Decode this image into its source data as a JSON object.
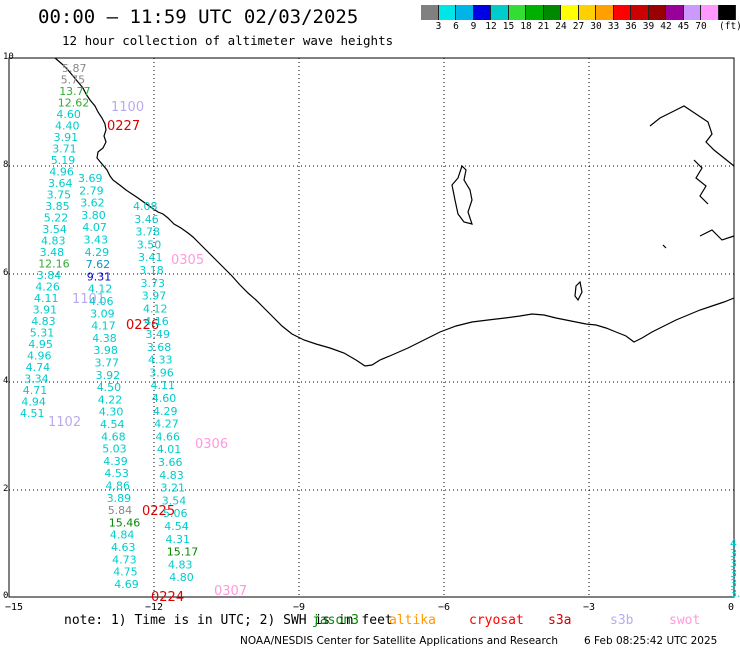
{
  "title": "00:00 – 11:59 UTC 02/03/2025",
  "subtitle": "12 hour collection of altimeter wave heights",
  "colorbar": {
    "colors": [
      "#808080",
      "#00e5e5",
      "#00b5e5",
      "#0000e5",
      "#00cccc",
      "#33dd33",
      "#00b000",
      "#008800",
      "#ffff00",
      "#ffd000",
      "#ffa000",
      "#ff0000",
      "#cc0000",
      "#990000",
      "#990099",
      "#cc99ff",
      "#ff99ff",
      "#000000"
    ],
    "labels": [
      "3",
      "6",
      "9",
      "12",
      "15",
      "18",
      "21",
      "24",
      "27",
      "30",
      "33",
      "36",
      "39",
      "42",
      "45",
      "70"
    ],
    "unit": "(ft)"
  },
  "axes": {
    "yticks": [
      "10",
      "8",
      "6",
      "4",
      "2",
      "0"
    ],
    "xticks": [
      "−15",
      "−12",
      "−9",
      "−6",
      "−3",
      "0"
    ]
  },
  "footer": {
    "note": "note: 1) Time is in UTC; 2) SWH is in feet",
    "satellites": [
      {
        "name": "jason3",
        "color": "#008800"
      },
      {
        "name": "altika",
        "color": "#ff9900"
      },
      {
        "name": "cryosat",
        "color": "#ff0000"
      },
      {
        "name": "s3a",
        "color": "#cc0000"
      },
      {
        "name": "s3b",
        "color": "#bbaaee"
      },
      {
        "name": "swot",
        "color": "#ff99dd"
      }
    ],
    "credit": "NOAA/NESDIS Center for Satellite Applications and Research",
    "timestamp": "6 Feb 08:25:42 UTC 2025"
  },
  "track_labels": [
    {
      "text": "1100",
      "color": "#bbaaee"
    },
    {
      "text": "0227",
      "color": "#dd0000"
    },
    {
      "text": "0305",
      "color": "#ff99dd"
    },
    {
      "text": "1101",
      "color": "#bbaaee"
    },
    {
      "text": "0226",
      "color": "#dd0000"
    },
    {
      "text": "1102",
      "color": "#bbaaee"
    },
    {
      "text": "0306",
      "color": "#ff99dd"
    },
    {
      "text": "0225",
      "color": "#dd0000"
    },
    {
      "text": "0224",
      "color": "#dd0000"
    },
    {
      "text": "0307",
      "color": "#ff99dd"
    }
  ],
  "obs_track1": [
    "5.87",
    "5.75",
    "13.77",
    "12.62",
    "4.60",
    "4.40",
    "3.91",
    "3.71",
    "5.19",
    "4.96",
    "3.64",
    "3.75",
    "3.85",
    "5.22",
    "3.54",
    "4.83",
    "3.48",
    "12.16",
    "3.84",
    "4.26",
    "4.11",
    "3.91",
    "4.83",
    "5.31",
    "4.95",
    "4.96",
    "4.74",
    "3.34",
    "4.71",
    "4.94",
    "4.51"
  ],
  "obs_track2": [
    "3.69",
    "2.79",
    "3.62",
    "3.80",
    "4.07",
    "3.43",
    "4.29",
    "7.62",
    "9.31",
    "4.12",
    "4.06",
    "3.09",
    "4.17",
    "4.38",
    "3.98",
    "3.77",
    "3.92",
    "4.50",
    "4.22",
    "4.30",
    "4.54",
    "4.68",
    "5.03",
    "4.39",
    "4.53",
    "4.86",
    "3.89",
    "5.84",
    "15.46",
    "4.84",
    "4.63",
    "4.73",
    "4.75",
    "4.69"
  ],
  "obs_track3": [
    "4.08",
    "3.46",
    "3.78",
    "3.50",
    "3.41",
    "3.18",
    "3.73",
    "3.97",
    "4.12",
    "4.16",
    "3.49",
    "3.68",
    "4.33",
    "3.96",
    "4.11",
    "4.60",
    "4.29",
    "4.27",
    "4.66",
    "4.01",
    "3.66",
    "4.83",
    "3.21",
    "3.54",
    "5.06",
    "4.54",
    "4.31",
    "15.17",
    "4.83",
    "4.80"
  ],
  "obs_edge": [
    "4",
    "3",
    "3",
    "3",
    "3",
    "3.8"
  ]
}
